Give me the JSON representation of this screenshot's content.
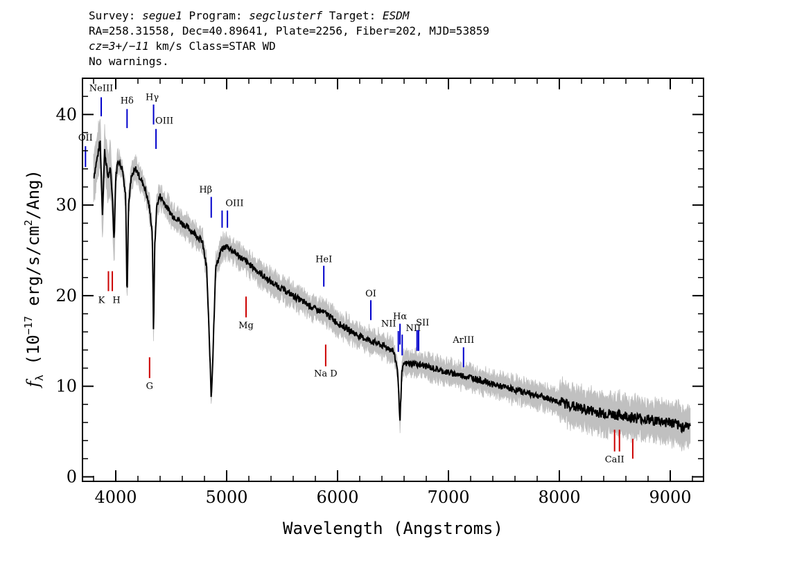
{
  "header": {
    "line1": {
      "survey_label": "Survey: ",
      "survey": "segue1",
      "program_label": " Program: ",
      "program": "segclusterf",
      "target_label": " Target: ",
      "target": "ESDM"
    },
    "line2": "RA=258.31558, Dec=40.89641, Plate=2256, Fiber=202, MJD=53859",
    "line3": {
      "cz": "cz=3+/−11",
      "rest": " km/s Class=STAR WD"
    },
    "line4": "No warnings."
  },
  "chart_data": {
    "type": "line",
    "xlabel": "Wavelength (Angstroms)",
    "ylabel_prefix": "f",
    "ylabel_sub": "λ",
    "ylabel_open": " (10",
    "ylabel_exp1": "−17",
    "ylabel_mid": " erg/s/cm",
    "ylabel_exp2": "2",
    "ylabel_close": "/Ang)",
    "xlim": [
      3700,
      9300
    ],
    "ylim": [
      -0.5,
      44
    ],
    "xticks": [
      4000,
      5000,
      6000,
      7000,
      8000,
      9000
    ],
    "yticks": [
      0,
      10,
      20,
      30,
      40
    ],
    "series": [
      {
        "type": "flux",
        "color": "#000000",
        "x": [
          3800,
          3860,
          3880,
          3900,
          3930,
          3950,
          3970,
          3985,
          4000,
          4020,
          4060,
          4090,
          4102,
          4115,
          4140,
          4180,
          4220,
          4260,
          4300,
          4330,
          4341,
          4350,
          4370,
          4400,
          4450,
          4500,
          4600,
          4700,
          4780,
          4820,
          4850,
          4861,
          4875,
          4900,
          4950,
          5000,
          5050,
          5100,
          5200,
          5400,
          5600,
          5800,
          5900,
          6000,
          6200,
          6400,
          6500,
          6540,
          6563,
          6580,
          6600,
          6650,
          6700,
          6800,
          7000,
          7200,
          7400,
          7600,
          7800,
          8000,
          8200,
          8400,
          8600,
          8800,
          9000,
          9100,
          9180
        ],
        "y": [
          33,
          37,
          29,
          36,
          33,
          34,
          31,
          26,
          33,
          35,
          34,
          31,
          19.5,
          30,
          33,
          34,
          33,
          32,
          30,
          27,
          15,
          25,
          30,
          31,
          30,
          29,
          28,
          27,
          26,
          23,
          13,
          8.5,
          13,
          23,
          25,
          25.5,
          25,
          24.5,
          23.5,
          21.5,
          20,
          18.5,
          18,
          17,
          15.5,
          14.5,
          14,
          12,
          6.2,
          11.5,
          12.5,
          12.5,
          12.5,
          12.2,
          11.5,
          11,
          10.2,
          9.6,
          9,
          8.3,
          7.5,
          7,
          6.7,
          6.3,
          6,
          5.5,
          5.8
        ]
      }
    ],
    "noise_color": "#c0c0c0",
    "emission_lines": [
      {
        "label": "OII",
        "x": 3727,
        "y0": 36.5,
        "y1": 34.2,
        "label_y": 37.1,
        "label_dx": 0,
        "color": "#0000cc"
      },
      {
        "label": "NeIII",
        "x": 3869,
        "y0": 41.9,
        "y1": 39.8,
        "label_y": 42.6,
        "label_dx": 0,
        "color": "#0000cc"
      },
      {
        "label": "Hδ",
        "x": 4102,
        "y0": 40.6,
        "y1": 38.5,
        "label_y": 41.2,
        "label_dx": 0,
        "color": "#0000cc"
      },
      {
        "label": "Hγ",
        "x": 4341,
        "y0": 41.1,
        "y1": 38.9,
        "label_y": 41.6,
        "label_dx": -2,
        "color": "#0000cc"
      },
      {
        "label": "OIII",
        "x": 4363,
        "y0": 38.4,
        "y1": 36.2,
        "label_y": 39.0,
        "label_dx": 12,
        "color": "#0000cc"
      },
      {
        "label": "Hβ",
        "x": 4861,
        "y0": 30.9,
        "y1": 28.6,
        "label_y": 31.4,
        "label_dx": -8,
        "color": "#0000cc"
      },
      {
        "label": "OIII",
        "x": 4959,
        "y0": 29.4,
        "y1": 27.5,
        "label_y": 29.9,
        "label_dx": 18,
        "color": "#0000cc"
      },
      {
        "label": "",
        "x": 5007,
        "y0": 29.4,
        "y1": 27.5,
        "label_y": 29.9,
        "label_dx": 0,
        "color": "#0000cc"
      },
      {
        "label": "HeI",
        "x": 5876,
        "y0": 23.3,
        "y1": 21.0,
        "label_y": 23.7,
        "label_dx": 0,
        "color": "#0000cc"
      },
      {
        "label": "OI",
        "x": 6300,
        "y0": 19.5,
        "y1": 17.3,
        "label_y": 19.9,
        "label_dx": 0,
        "color": "#0000cc"
      },
      {
        "label": "NII",
        "x": 6548,
        "y0": 16.1,
        "y1": 13.8,
        "label_y": 16.6,
        "label_dx": -14,
        "color": "#0000cc"
      },
      {
        "label": "Hα",
        "x": 6563,
        "y0": 16.9,
        "y1": 14.6,
        "label_y": 17.4,
        "label_dx": 0,
        "color": "#0000cc"
      },
      {
        "label": "NII",
        "x": 6583,
        "y0": 15.7,
        "y1": 13.4,
        "label_y": 16.1,
        "label_dx": 16,
        "color": "#0000cc"
      },
      {
        "label": "SII",
        "x": 6717,
        "y0": 16.2,
        "y1": 13.9,
        "label_y": 16.7,
        "label_dx": 8,
        "color": "#0000cc"
      },
      {
        "label": "",
        "x": 6731,
        "y0": 16.2,
        "y1": 13.9,
        "label_y": 16.7,
        "label_dx": 0,
        "color": "#0000cc"
      },
      {
        "label": "ArIII",
        "x": 7136,
        "y0": 14.3,
        "y1": 12.1,
        "label_y": 14.8,
        "label_dx": 0,
        "color": "#0000cc"
      }
    ],
    "absorption_lines": [
      {
        "label": "K",
        "x": 3934,
        "y0": 22.7,
        "y1": 20.5,
        "label_y": 19.2,
        "label_dx": -10,
        "color": "#cc0000"
      },
      {
        "label": "H",
        "x": 3969,
        "y0": 22.7,
        "y1": 20.5,
        "label_y": 19.2,
        "label_dx": 6,
        "color": "#cc0000"
      },
      {
        "label": "G",
        "x": 4305,
        "y0": 13.2,
        "y1": 10.9,
        "label_y": 9.7,
        "label_dx": 0,
        "color": "#cc0000"
      },
      {
        "label": "Mg",
        "x": 5175,
        "y0": 19.9,
        "y1": 17.6,
        "label_y": 16.4,
        "label_dx": 0,
        "color": "#cc0000"
      },
      {
        "label": "Na D",
        "x": 5893,
        "y0": 14.6,
        "y1": 12.2,
        "label_y": 11.1,
        "label_dx": 0,
        "color": "#cc0000"
      },
      {
        "label": "CaII",
        "x": 8498,
        "y0": 5.2,
        "y1": 2.8,
        "label_y": 1.6,
        "label_dx": 0,
        "color": "#cc0000"
      },
      {
        "label": "",
        "x": 8542,
        "y0": 5.2,
        "y1": 2.8,
        "label_y": 1.6,
        "label_dx": 0,
        "color": "#cc0000"
      },
      {
        "label": "",
        "x": 8662,
        "y0": 4.2,
        "y1": 2.0,
        "label_y": 1.6,
        "label_dx": 0,
        "color": "#cc0000"
      }
    ]
  }
}
